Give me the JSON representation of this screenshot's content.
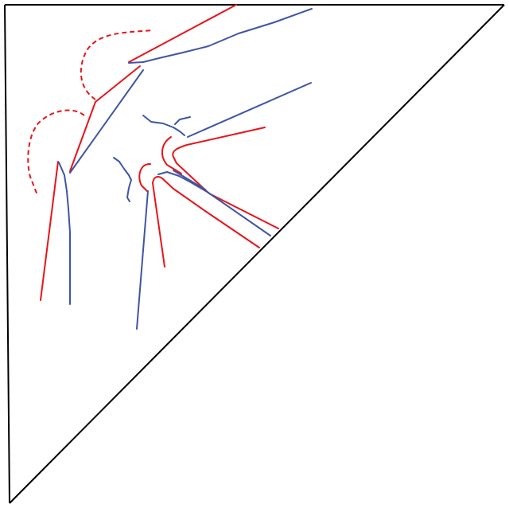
{
  "diagram": {
    "colors": {
      "background": "#ffffff",
      "frame": "#000000",
      "red": "#e8141a",
      "blue": "#3f55a5"
    }
  }
}
